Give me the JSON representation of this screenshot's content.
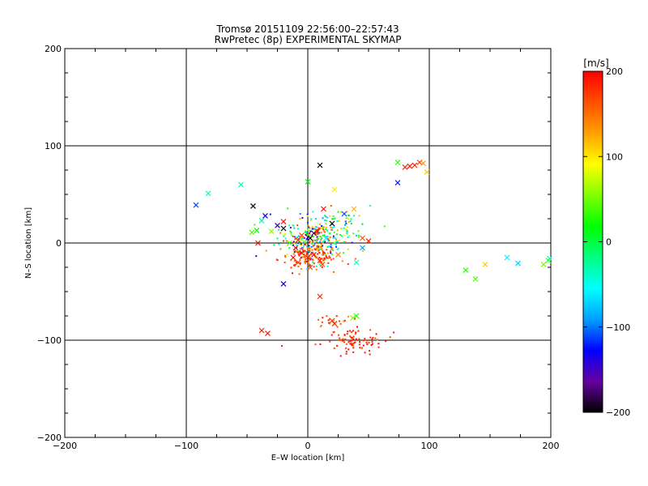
{
  "chart_data": {
    "type": "scatter",
    "title": "Tromsø 20151109 22:56:00–22:57:43",
    "subtitle": "RwPretec (8p) EXPERIMENTAL SKYMAP",
    "xlabel": "E–W location [km]",
    "ylabel": "N–S location [km]",
    "xlim": [
      -200,
      200
    ],
    "ylim": [
      -200,
      200
    ],
    "x_ticks": [
      -200,
      -100,
      0,
      100,
      200
    ],
    "x_tick_labels": [
      "−200",
      "−100",
      "0",
      "100",
      "200"
    ],
    "y_ticks": [
      -200,
      -100,
      0,
      100,
      200
    ],
    "y_tick_labels": [
      "−200",
      "−100",
      "0",
      "100",
      "200"
    ],
    "grid": true,
    "colorbar": {
      "label": "[m/s]",
      "range": [
        -200,
        200
      ],
      "ticks": [
        200,
        100,
        0,
        -100,
        -200
      ],
      "tick_labels": [
        "200",
        "100",
        "0",
        "−100",
        "−200"
      ],
      "colormap": [
        "#000000",
        "#6600a0",
        "#0000ff",
        "#00a0ff",
        "#00ffff",
        "#00ff80",
        "#00ff00",
        "#80ff00",
        "#ffff00",
        "#ffa000",
        "#ff5000",
        "#ff0000"
      ]
    },
    "cross_points": [
      {
        "x": 10,
        "y": 80,
        "v": -200
      },
      {
        "x": 74,
        "y": 83,
        "v": 30
      },
      {
        "x": 80,
        "y": 78,
        "v": 180
      },
      {
        "x": 84,
        "y": 79,
        "v": 190
      },
      {
        "x": 88,
        "y": 80,
        "v": 185
      },
      {
        "x": 92,
        "y": 83,
        "v": 170
      },
      {
        "x": 95,
        "y": 82,
        "v": 130
      },
      {
        "x": 98,
        "y": 73,
        "v": 110
      },
      {
        "x": 74,
        "y": 62,
        "v": -120
      },
      {
        "x": 22,
        "y": 55,
        "v": 100
      },
      {
        "x": 0,
        "y": 63,
        "v": 20
      },
      {
        "x": -92,
        "y": 39,
        "v": -110
      },
      {
        "x": -82,
        "y": 51,
        "v": -40
      },
      {
        "x": -55,
        "y": 60,
        "v": -30
      },
      {
        "x": -45,
        "y": 38,
        "v": -200
      },
      {
        "x": -35,
        "y": 28,
        "v": -130
      },
      {
        "x": -38,
        "y": 23,
        "v": -30
      },
      {
        "x": -42,
        "y": 13,
        "v": 20
      },
      {
        "x": -46,
        "y": 11,
        "v": 40
      },
      {
        "x": -41,
        "y": 0,
        "v": 190
      },
      {
        "x": -20,
        "y": 22,
        "v": 190
      },
      {
        "x": -20,
        "y": 15,
        "v": -200
      },
      {
        "x": -25,
        "y": 18,
        "v": -150
      },
      {
        "x": -30,
        "y": 12,
        "v": 60
      },
      {
        "x": 13,
        "y": 35,
        "v": 190
      },
      {
        "x": 20,
        "y": 20,
        "v": -200
      },
      {
        "x": 30,
        "y": 30,
        "v": -110
      },
      {
        "x": 38,
        "y": 35,
        "v": 120
      },
      {
        "x": 45,
        "y": 5,
        "v": 160
      },
      {
        "x": 50,
        "y": 2,
        "v": 185
      },
      {
        "x": 45,
        "y": -5,
        "v": -90
      },
      {
        "x": 40,
        "y": -20,
        "v": -40
      },
      {
        "x": 25,
        "y": -12,
        "v": 140
      },
      {
        "x": 2,
        "y": 5,
        "v": -200
      },
      {
        "x": 5,
        "y": 10,
        "v": -180
      },
      {
        "x": 8,
        "y": 12,
        "v": 190
      },
      {
        "x": -5,
        "y": 8,
        "v": 170
      },
      {
        "x": -8,
        "y": 3,
        "v": 175
      },
      {
        "x": -10,
        "y": -5,
        "v": 190
      },
      {
        "x": -5,
        "y": -10,
        "v": 190
      },
      {
        "x": 0,
        "y": -15,
        "v": 185
      },
      {
        "x": 5,
        "y": -12,
        "v": 190
      },
      {
        "x": 10,
        "y": -18,
        "v": 180
      },
      {
        "x": -12,
        "y": -15,
        "v": 190
      },
      {
        "x": -8,
        "y": -20,
        "v": 175
      },
      {
        "x": 12,
        "y": -22,
        "v": 160
      },
      {
        "x": 2,
        "y": -25,
        "v": 170
      },
      {
        "x": 10,
        "y": -4,
        "v": 120
      },
      {
        "x": -15,
        "y": 0,
        "v": 40
      },
      {
        "x": 15,
        "y": 5,
        "v": -60
      },
      {
        "x": -20,
        "y": -42,
        "v": -130
      },
      {
        "x": 10,
        "y": -55,
        "v": 180
      },
      {
        "x": 20,
        "y": -80,
        "v": 175
      },
      {
        "x": 22,
        "y": -83,
        "v": 185
      },
      {
        "x": -38,
        "y": -90,
        "v": 185
      },
      {
        "x": -33,
        "y": -93,
        "v": 185
      },
      {
        "x": 40,
        "y": -75,
        "v": 30
      },
      {
        "x": 37,
        "y": -77,
        "v": 60
      },
      {
        "x": 130,
        "y": -28,
        "v": 30
      },
      {
        "x": 138,
        "y": -37,
        "v": 40
      },
      {
        "x": 146,
        "y": -22,
        "v": 110
      },
      {
        "x": 164,
        "y": -15,
        "v": -60
      },
      {
        "x": 173,
        "y": -21,
        "v": -70
      },
      {
        "x": 194,
        "y": -22,
        "v": 50
      },
      {
        "x": 198,
        "y": -18,
        "v": 40
      },
      {
        "x": 199,
        "y": -16,
        "v": -40
      }
    ],
    "dot_clusters": [
      {
        "cx": 5,
        "cy": 5,
        "sx": 14,
        "sy": 12,
        "n": 280,
        "vmin": -160,
        "vmax": 200
      },
      {
        "cx": 0,
        "cy": -14,
        "sx": 12,
        "sy": 6,
        "n": 120,
        "vmin": 130,
        "vmax": 200
      },
      {
        "cx": 35,
        "cy": -100,
        "sx": 14,
        "sy": 7,
        "n": 90,
        "vmin": 160,
        "vmax": 200
      },
      {
        "cx": 20,
        "cy": -82,
        "sx": 8,
        "sy": 4,
        "n": 18,
        "vmin": 120,
        "vmax": 200
      },
      {
        "cx": 30,
        "cy": 20,
        "sx": 12,
        "sy": 10,
        "n": 35,
        "vmin": -120,
        "vmax": 120
      }
    ]
  }
}
